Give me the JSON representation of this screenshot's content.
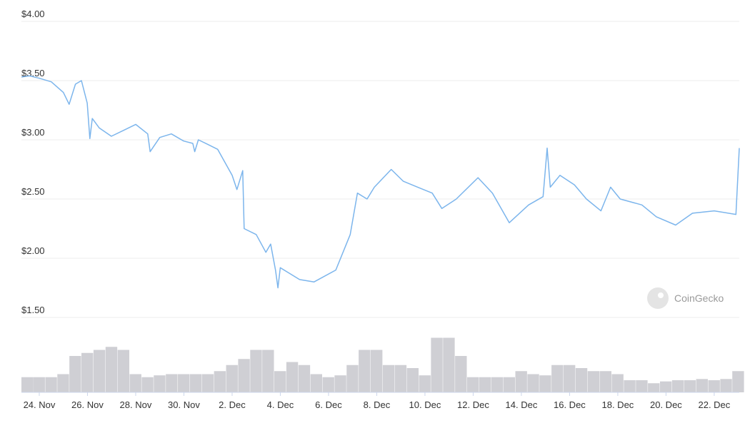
{
  "chart_data": {
    "type": "line",
    "watermark": "CoinGecko",
    "series": [
      {
        "name": "Price",
        "color": "#7cb5ec",
        "x": [
          23.26,
          23.6,
          24.0,
          24.5,
          25.0,
          25.24,
          25.5,
          25.75,
          25.99,
          26.1,
          26.2,
          26.49,
          26.99,
          27.5,
          28.0,
          28.5,
          28.6,
          29.0,
          29.48,
          29.99,
          30.37,
          30.45,
          30.6,
          31.0,
          31.4,
          32.0,
          32.2,
          32.44,
          32.5,
          33.0,
          33.4,
          33.6,
          33.8,
          33.9,
          34.0,
          34.8,
          35.4,
          36.3,
          36.9,
          37.2,
          37.6,
          37.9,
          38.6,
          39.1,
          39.7,
          40.3,
          40.7,
          41.3,
          42.2,
          42.8,
          43.5,
          44.3,
          44.9,
          45.07,
          45.2,
          45.6,
          46.2,
          46.7,
          47.3,
          47.7,
          48.1,
          49.0,
          49.6,
          50.4,
          51.1,
          52.0,
          52.9,
          53.04
        ],
        "values": [
          3.53,
          3.54,
          3.52,
          3.49,
          3.4,
          3.3,
          3.47,
          3.5,
          3.31,
          3.01,
          3.18,
          3.1,
          3.03,
          3.08,
          3.13,
          3.05,
          2.9,
          3.02,
          3.05,
          2.99,
          2.97,
          2.9,
          3.0,
          2.96,
          2.92,
          2.7,
          2.58,
          2.74,
          2.25,
          2.2,
          2.05,
          2.12,
          1.9,
          1.75,
          1.92,
          1.82,
          1.8,
          1.9,
          2.2,
          2.55,
          2.5,
          2.6,
          2.75,
          2.65,
          2.6,
          2.55,
          2.42,
          2.5,
          2.68,
          2.55,
          2.3,
          2.45,
          2.52,
          2.93,
          2.6,
          2.7,
          2.62,
          2.5,
          2.4,
          2.6,
          2.5,
          2.45,
          2.35,
          2.28,
          2.38,
          2.4,
          2.37,
          2.93
        ]
      },
      {
        "name": "Volume",
        "color": "#cfcfd4",
        "axis": "y2",
        "x": [
          23.5,
          24,
          24.5,
          25,
          25.5,
          26,
          26.5,
          27,
          27.5,
          28,
          28.5,
          29,
          29.5,
          30,
          30.5,
          31,
          31.5,
          32,
          32.5,
          33,
          33.5,
          34,
          34.5,
          35,
          35.5,
          36,
          36.5,
          37,
          37.5,
          38,
          38.5,
          39,
          39.5,
          40,
          40.5,
          41,
          41.5,
          42,
          42.5,
          43,
          43.5,
          44,
          44.5,
          45,
          45.5,
          46,
          46.5,
          47,
          47.5,
          48,
          48.5,
          49,
          49.5,
          50,
          50.5,
          51,
          51.5,
          52,
          52.5,
          53
        ],
        "values": [
          25,
          25,
          25,
          30,
          60,
          65,
          70,
          75,
          70,
          30,
          25,
          28,
          30,
          30,
          30,
          30,
          35,
          45,
          55,
          70,
          70,
          35,
          50,
          45,
          30,
          25,
          28,
          45,
          70,
          70,
          45,
          45,
          40,
          28,
          90,
          90,
          60,
          25,
          25,
          25,
          25,
          35,
          30,
          28,
          45,
          45,
          40,
          35,
          35,
          30,
          20,
          20,
          15,
          18,
          20,
          20,
          22,
          20,
          22,
          35
        ]
      }
    ],
    "xlim": [
      23.26,
      53.04
    ],
    "xticks": [
      {
        "value": 24,
        "label": "24. Nov"
      },
      {
        "value": 26,
        "label": "26. Nov"
      },
      {
        "value": 28,
        "label": "28. Nov"
      },
      {
        "value": 30,
        "label": "30. Nov"
      },
      {
        "value": 32,
        "label": "2. Dec"
      },
      {
        "value": 34,
        "label": "4. Dec"
      },
      {
        "value": 36,
        "label": "6. Dec"
      },
      {
        "value": 38,
        "label": "8. Dec"
      },
      {
        "value": 40,
        "label": "10. Dec"
      },
      {
        "value": 42,
        "label": "12. Dec"
      },
      {
        "value": 44,
        "label": "14. Dec"
      },
      {
        "value": 46,
        "label": "16. Dec"
      },
      {
        "value": 48,
        "label": "18. Dec"
      },
      {
        "value": 50,
        "label": "20. Dec"
      },
      {
        "value": 52,
        "label": "22. Dec"
      }
    ],
    "ylim": [
      1.5,
      4.0
    ],
    "yticks": [
      {
        "value": 1.5,
        "label": "$1.50"
      },
      {
        "value": 2.0,
        "label": "$2.00"
      },
      {
        "value": 2.5,
        "label": "$2.50"
      },
      {
        "value": 3.0,
        "label": "$3.00"
      },
      {
        "value": 3.5,
        "label": "$3.50"
      },
      {
        "value": 4.0,
        "label": "$4.00"
      }
    ],
    "y2lim": [
      0,
      100
    ],
    "grid": true
  }
}
